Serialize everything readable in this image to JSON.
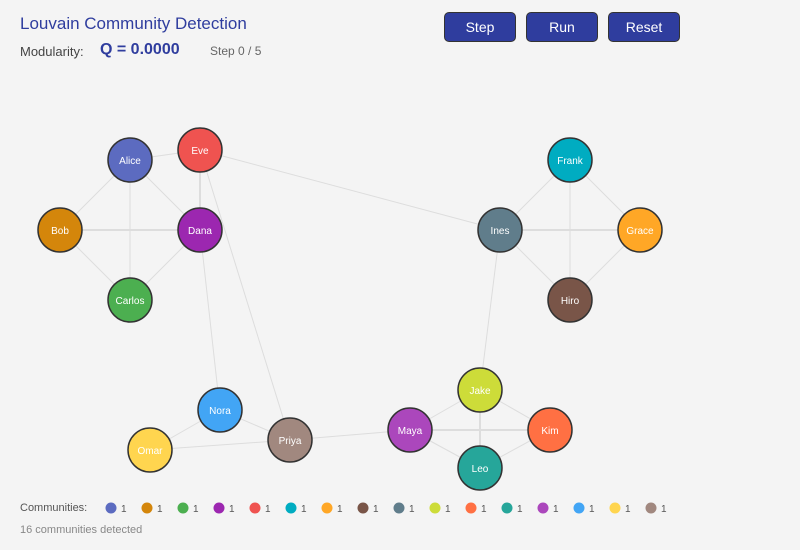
{
  "header": {
    "title": "Louvain Community Detection",
    "modularity_label": "Modularity:",
    "modularity_value": "Q = 0.0000",
    "step": "Step 0 / 5"
  },
  "controls": {
    "step": "Step",
    "run": "Run",
    "reset": "Reset"
  },
  "nodes": [
    {
      "id": "Alice",
      "color": "#5c6bc0"
    },
    {
      "id": "Bob",
      "color": "#d4860b"
    },
    {
      "id": "Carlos",
      "color": "#4caf50"
    },
    {
      "id": "Dana",
      "color": "#9c27b0"
    },
    {
      "id": "Eve",
      "color": "#ef5350"
    },
    {
      "id": "Frank",
      "color": "#00acc1"
    },
    {
      "id": "Grace",
      "color": "#ffa726"
    },
    {
      "id": "Hiro",
      "color": "#795548"
    },
    {
      "id": "Ines",
      "color": "#607d8b"
    },
    {
      "id": "Jake",
      "color": "#cddc39"
    },
    {
      "id": "Kim",
      "color": "#ff7043"
    },
    {
      "id": "Leo",
      "color": "#26a69a"
    },
    {
      "id": "Maya",
      "color": "#ab47bc"
    },
    {
      "id": "Nora",
      "color": "#42a5f5"
    },
    {
      "id": "Omar",
      "color": "#ffd54f"
    },
    {
      "id": "Priya",
      "color": "#a1887f"
    }
  ],
  "edges": [
    [
      "Alice",
      "Eve",
      1
    ],
    [
      "Alice",
      "Bob",
      1
    ],
    [
      "Alice",
      "Carlos",
      1
    ],
    [
      "Alice",
      "Dana",
      1
    ],
    [
      "Bob",
      "Dana",
      2
    ],
    [
      "Bob",
      "Carlos",
      1
    ],
    [
      "Carlos",
      "Dana",
      1
    ],
    [
      "Eve",
      "Dana",
      2
    ],
    [
      "Eve",
      "Ines",
      1
    ],
    [
      "Eve",
      "Priya",
      1
    ],
    [
      "Dana",
      "Nora",
      1
    ],
    [
      "Frank",
      "Ines",
      1
    ],
    [
      "Frank",
      "Grace",
      1
    ],
    [
      "Frank",
      "Hiro",
      1
    ],
    [
      "Ines",
      "Grace",
      2
    ],
    [
      "Ines",
      "Hiro",
      1
    ],
    [
      "Grace",
      "Hiro",
      1
    ],
    [
      "Ines",
      "Jake",
      1
    ],
    [
      "Jake",
      "Maya",
      1
    ],
    [
      "Jake",
      "Kim",
      1
    ],
    [
      "Jake",
      "Leo",
      2
    ],
    [
      "Maya",
      "Kim",
      2
    ],
    [
      "Maya",
      "Leo",
      1
    ],
    [
      "Kim",
      "Leo",
      1
    ],
    [
      "Maya",
      "Priya",
      1
    ],
    [
      "Nora",
      "Omar",
      1
    ],
    [
      "Nora",
      "Priya",
      1
    ],
    [
      "Omar",
      "Priya",
      1
    ]
  ],
  "legend": {
    "label": "Communities:",
    "items": [
      {
        "color": "#5c6bc0",
        "count": "1"
      },
      {
        "color": "#d4860b",
        "count": "1"
      },
      {
        "color": "#4caf50",
        "count": "1"
      },
      {
        "color": "#9c27b0",
        "count": "1"
      },
      {
        "color": "#ef5350",
        "count": "1"
      },
      {
        "color": "#00acc1",
        "count": "1"
      },
      {
        "color": "#ffa726",
        "count": "1"
      },
      {
        "color": "#795548",
        "count": "1"
      },
      {
        "color": "#607d8b",
        "count": "1"
      },
      {
        "color": "#cddc39",
        "count": "1"
      },
      {
        "color": "#ff7043",
        "count": "1"
      },
      {
        "color": "#26a69a",
        "count": "1"
      },
      {
        "color": "#ab47bc",
        "count": "1"
      },
      {
        "color": "#42a5f5",
        "count": "1"
      },
      {
        "color": "#ffd54f",
        "count": "1"
      },
      {
        "color": "#a1887f",
        "count": "1"
      }
    ],
    "summary": "16 communities detected"
  }
}
